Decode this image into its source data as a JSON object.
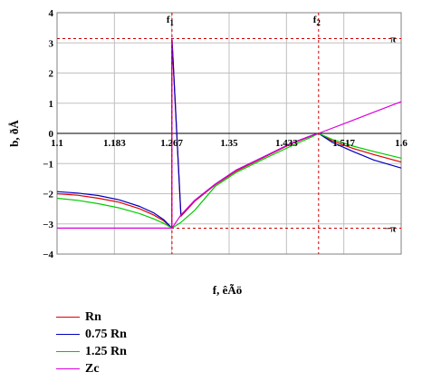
{
  "chart_data": {
    "type": "line",
    "xlabel": "f, êÃö",
    "ylabel": "b, ðÅ",
    "xlim": [
      1.1,
      1.6
    ],
    "ylim": [
      -4,
      4
    ],
    "x_ticks": [
      "1.1",
      "1.183",
      "1.267",
      "1.35",
      "1.433",
      "1.517",
      "1.6"
    ],
    "y_ticks": [
      "4",
      "3",
      "2",
      "1",
      "0",
      "−1",
      "−2",
      "−3",
      "−4"
    ],
    "grid": true,
    "legend_position": "bottom-left",
    "annotations": [
      {
        "label": "f",
        "sub": "1",
        "x": 1.267
      },
      {
        "label": "f",
        "sub": "2",
        "x": 1.48
      }
    ],
    "ref_levels": [
      {
        "label": "π",
        "y": 3.1416
      },
      {
        "label": "−π",
        "y": -3.1416
      }
    ],
    "series": [
      {
        "name": "Rn",
        "color": "#e00000",
        "x": [
          1.1,
          1.13,
          1.16,
          1.19,
          1.22,
          1.24,
          1.255,
          1.267,
          1.267,
          1.28,
          1.3,
          1.33,
          1.36,
          1.4,
          1.44,
          1.47,
          1.48,
          1.5,
          1.53,
          1.56,
          1.6
        ],
        "y": [
          -2.0,
          -2.05,
          -2.15,
          -2.28,
          -2.5,
          -2.7,
          -2.9,
          -3.14,
          3.14,
          -2.75,
          -2.25,
          -1.7,
          -1.25,
          -0.8,
          -0.35,
          -0.08,
          0.0,
          -0.25,
          -0.5,
          -0.7,
          -0.95
        ]
      },
      {
        "name": "0.75 Rn",
        "color": "#0000c0",
        "x": [
          1.1,
          1.13,
          1.16,
          1.19,
          1.22,
          1.24,
          1.255,
          1.267,
          1.267,
          1.28,
          1.3,
          1.33,
          1.36,
          1.4,
          1.44,
          1.47,
          1.48,
          1.5,
          1.53,
          1.56,
          1.6
        ],
        "y": [
          -1.93,
          -1.98,
          -2.06,
          -2.2,
          -2.42,
          -2.63,
          -2.86,
          -3.14,
          3.14,
          -2.72,
          -2.22,
          -1.68,
          -1.22,
          -0.78,
          -0.33,
          -0.07,
          0.0,
          -0.3,
          -0.6,
          -0.88,
          -1.15
        ]
      },
      {
        "name": "1.25 Rn",
        "color": "#00cc00",
        "x": [
          1.1,
          1.13,
          1.16,
          1.19,
          1.22,
          1.24,
          1.255,
          1.267,
          1.28,
          1.3,
          1.33,
          1.36,
          1.4,
          1.44,
          1.47,
          1.48,
          1.5,
          1.53,
          1.56,
          1.6
        ],
        "y": [
          -2.15,
          -2.22,
          -2.33,
          -2.47,
          -2.66,
          -2.83,
          -2.98,
          -3.14,
          -2.95,
          -2.55,
          -1.75,
          -1.3,
          -0.85,
          -0.42,
          -0.12,
          0.0,
          -0.2,
          -0.42,
          -0.6,
          -0.82
        ]
      },
      {
        "name": "Zc",
        "color": "#dd00dd",
        "x": [
          1.1,
          1.2,
          1.267,
          1.267,
          1.267,
          1.28,
          1.3,
          1.33,
          1.36,
          1.4,
          1.44,
          1.47,
          1.48,
          1.52,
          1.56,
          1.6
        ],
        "y": [
          -3.14,
          -3.14,
          -3.14,
          3.14,
          -3.14,
          -2.7,
          -2.22,
          -1.68,
          -1.22,
          -0.78,
          -0.33,
          -0.07,
          0.0,
          0.35,
          0.7,
          1.05
        ]
      }
    ]
  }
}
